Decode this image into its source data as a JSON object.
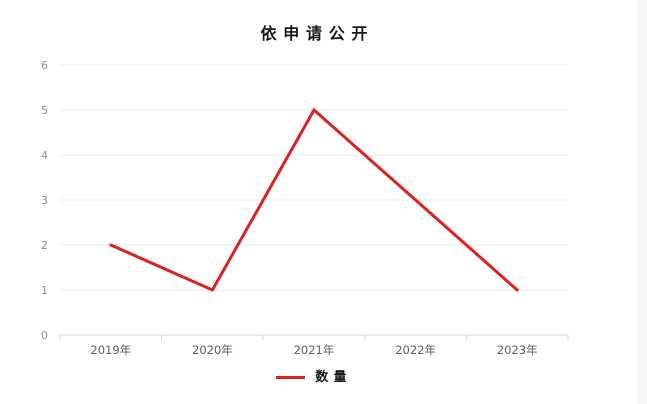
{
  "chart_data": {
    "type": "line",
    "title": "依申请公开",
    "categories": [
      "2019年",
      "2020年",
      "2021年",
      "2022年",
      "2023年"
    ],
    "series": [
      {
        "name": "数量",
        "color": "#dd2020",
        "values": [
          2,
          1,
          5,
          3,
          1
        ]
      }
    ],
    "ylim": [
      0,
      6
    ],
    "ytick_interval": 1,
    "ytick_labels": [
      "0",
      "1",
      "2",
      "3",
      "4",
      "5",
      "6"
    ],
    "grid": true,
    "legend_position": "bottom"
  },
  "colors": {
    "gridline": "#ebebeb",
    "axis_line": "#d6d6d6",
    "ytick_label": "#8f8f8f",
    "xtick_label": "#5f5f5f",
    "title": "#1a1a1a",
    "card_background": "#ffffff",
    "page_background": "#f6f6f6"
  }
}
